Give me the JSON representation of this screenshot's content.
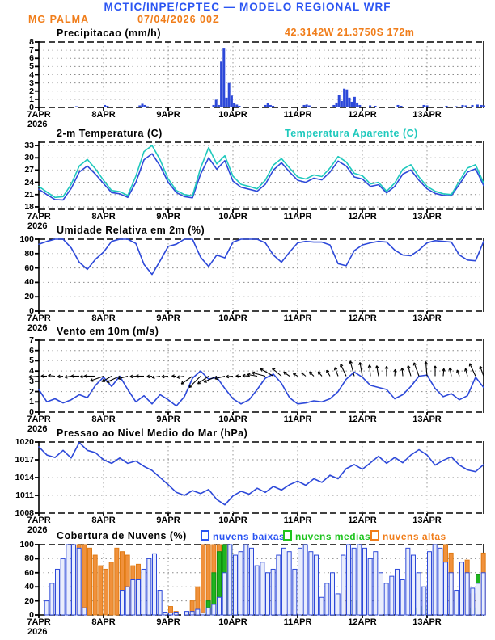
{
  "header": {
    "title": "MCTIC/INPE/CPTEC — MODELO REGIONAL WRF",
    "title_color": "#2b55f2",
    "station": "MG PALMA",
    "run_datetime": "07/04/2026 00Z",
    "coords": "42.3142W 21.3750S 172m",
    "orange_color": "#f07d1a"
  },
  "chart_data": {
    "type": "meteogram",
    "xaxis": {
      "tick_labels": [
        "7APR",
        "8APR",
        "9APR",
        "10APR",
        "11APR",
        "12APR",
        "13APR"
      ],
      "year_label": "2026",
      "days_shown": 6.875,
      "grid": "dotted"
    },
    "panels": [
      {
        "id": "precip",
        "type": "bars",
        "title": "Precipitacao (mm/h)",
        "ylabel": "mm/h",
        "ylim": [
          0,
          8
        ],
        "yticks": [
          0,
          1,
          2,
          3,
          4,
          5,
          6,
          7,
          8
        ],
        "bar_color": "#2d49d9",
        "bars": [
          [
            0.58,
            0.15
          ],
          [
            1.02,
            0.3
          ],
          [
            1.06,
            0.2
          ],
          [
            1.56,
            0.25
          ],
          [
            1.6,
            0.45
          ],
          [
            1.64,
            0.3
          ],
          [
            1.68,
            0.15
          ],
          [
            2.5,
            0.1
          ],
          [
            2.7,
            0.3
          ],
          [
            2.74,
            0.95
          ],
          [
            2.78,
            0.3
          ],
          [
            2.82,
            5.6
          ],
          [
            2.86,
            7.2
          ],
          [
            2.9,
            1.2
          ],
          [
            2.94,
            3.0
          ],
          [
            2.98,
            1.45
          ],
          [
            3.02,
            0.55
          ],
          [
            3.06,
            0.35
          ],
          [
            3.1,
            0.2
          ],
          [
            3.5,
            0.3
          ],
          [
            3.54,
            0.5
          ],
          [
            3.58,
            0.3
          ],
          [
            3.62,
            0.2
          ],
          [
            4.1,
            0.3
          ],
          [
            4.14,
            0.35
          ],
          [
            4.18,
            0.25
          ],
          [
            4.56,
            0.3
          ],
          [
            4.6,
            0.6
          ],
          [
            4.64,
            1.5
          ],
          [
            4.68,
            0.8
          ],
          [
            4.72,
            2.3
          ],
          [
            4.76,
            2.2
          ],
          [
            4.8,
            1.2
          ],
          [
            4.84,
            0.7
          ],
          [
            4.88,
            1.3
          ],
          [
            4.92,
            0.6
          ],
          [
            4.96,
            0.3
          ],
          [
            5.12,
            0.25
          ],
          [
            5.2,
            0.2
          ],
          [
            5.55,
            0.3
          ],
          [
            5.6,
            0.2
          ],
          [
            5.95,
            0.3
          ],
          [
            6.0,
            0.25
          ],
          [
            6.3,
            0.2
          ],
          [
            6.45,
            0.15
          ],
          [
            6.55,
            0.3
          ],
          [
            6.6,
            0.25
          ],
          [
            6.7,
            0.3
          ],
          [
            6.78,
            0.35
          ],
          [
            6.84,
            0.3
          ],
          [
            6.88,
            0.25
          ]
        ]
      },
      {
        "id": "temp",
        "type": "lines",
        "title": "2-m Temperatura (C)",
        "right_title": "Temperatura Aparente (C)",
        "right_title_color": "#1fc9bd",
        "ylim": [
          17.4,
          33.8
        ],
        "yticks": [
          18,
          21,
          24,
          27,
          30,
          33
        ],
        "step_hours": 3,
        "series": [
          {
            "name": "2-m Temperatura (C)",
            "color": "#2d49d9",
            "values": [
              22.3,
              21.0,
              19.8,
              19.7,
              22.5,
              26.5,
              28.0,
              26.0,
              23.7,
              21.5,
              21.2,
              20.3,
              24.0,
              29.5,
              31.0,
              28.0,
              24.0,
              21.5,
              20.5,
              20.2,
              26.0,
              30.0,
              27.2,
              29.3,
              24.3,
              22.8,
              22.3,
              21.8,
              23.5,
              27.0,
              28.8,
              26.5,
              24.5,
              24.0,
              25.0,
              24.6,
              26.5,
              29.2,
              28.0,
              25.3,
              24.8,
              23.0,
              23.4,
              21.4,
              23.0,
              26.0,
              27.0,
              24.5,
              22.4,
              21.3,
              20.8,
              20.7,
              23.5,
              26.5,
              27.3,
              23.2
            ]
          },
          {
            "name": "Temperatura Aparente (C)",
            "color": "#1fc9bd",
            "values": [
              23.0,
              21.6,
              20.3,
              20.5,
              23.5,
              28.0,
              29.6,
              27.3,
              24.5,
              22.0,
              21.7,
              20.8,
              25.5,
              31.5,
              33.0,
              29.5,
              24.8,
              22.0,
              21.0,
              20.7,
              27.5,
              32.5,
              28.5,
              30.5,
              25.5,
              23.5,
              23.0,
              22.4,
              24.5,
              28.2,
              29.8,
              27.5,
              25.3,
              24.8,
              25.8,
              25.4,
              27.5,
              30.3,
              29.0,
              26.2,
              25.6,
              23.6,
              24.0,
              21.8,
              23.8,
              27.2,
              28.3,
              25.3,
              23.0,
              21.8,
              21.2,
              21.0,
              24.3,
              27.5,
              28.3,
              23.8
            ]
          }
        ]
      },
      {
        "id": "rh",
        "type": "lines",
        "title": "Umidade Relativa em 2m (%)",
        "ylim": [
          0,
          100
        ],
        "yticks": [
          0,
          20,
          40,
          60,
          80,
          100
        ],
        "step_hours": 3,
        "series": [
          {
            "name": "Umidade Relativa em 2m (%)",
            "color": "#2d49d9",
            "values": [
              93,
              97,
              100,
              100,
              88,
              68,
              58,
              72,
              82,
              97,
              100,
              100,
              94,
              65,
              51,
              70,
              90,
              93,
              100,
              100,
              75,
              62,
              78,
              74,
              96,
              100,
              100,
              100,
              95,
              78,
              68,
              82,
              95,
              97,
              96,
              96,
              92,
              66,
              63,
              84,
              92,
              95,
              97,
              96,
              85,
              78,
              77,
              85,
              95,
              98,
              97,
              96,
              78,
              71,
              70,
              97
            ]
          }
        ]
      },
      {
        "id": "wind",
        "type": "wind",
        "title": "Vento em 10m (m/s)",
        "ylim": [
          0,
          7
        ],
        "yticks": [
          0,
          1,
          2,
          3,
          4,
          5,
          6,
          7
        ],
        "step_hours": 3,
        "speed_color": "#2d49d9",
        "arrow_color": "#000000",
        "arrow_base": 3.5,
        "speed": [
          2.2,
          1.0,
          1.3,
          0.9,
          1.2,
          1.7,
          1.4,
          2.6,
          3.4,
          2.5,
          3.5,
          2.2,
          1.0,
          1.6,
          0.8,
          1.7,
          1.2,
          0.6,
          1.5,
          3.3,
          4.0,
          3.2,
          3.4,
          2.3,
          1.3,
          0.8,
          1.2,
          2.2,
          3.3,
          3.7,
          2.8,
          1.4,
          0.8,
          0.9,
          1.1,
          1.0,
          1.3,
          2.0,
          3.2,
          3.9,
          3.4,
          2.6,
          2.4,
          2.2,
          1.3,
          1.7,
          2.5,
          3.5,
          3.6,
          2.3,
          1.5,
          1.8,
          1.2,
          1.6,
          3.4,
          2.4
        ],
        "dir_deg": [
          185,
          180,
          175,
          185,
          190,
          180,
          185,
          180,
          200,
          210,
          205,
          195,
          185,
          180,
          185,
          190,
          185,
          180,
          190,
          215,
          225,
          215,
          205,
          195,
          185,
          180,
          175,
          170,
          165,
          150,
          140,
          145,
          150,
          140,
          135,
          130,
          120,
          110,
          115,
          105,
          100,
          95,
          100,
          90,
          85,
          95,
          105,
          110,
          95,
          90,
          85,
          100,
          110,
          105,
          115,
          110
        ]
      },
      {
        "id": "pres",
        "type": "lines",
        "title": "Pressao ao Nivel Medio do Mar (hPa)",
        "ylim": [
          1008,
          1020
        ],
        "yticks": [
          1008,
          1011,
          1014,
          1017,
          1020
        ],
        "step_hours": 3,
        "series": [
          {
            "name": "Pressao ao Nivel Medio do Mar (hPa)",
            "color": "#2d49d9",
            "values": [
              1019.2,
              1017.8,
              1017.4,
              1018.6,
              1017.3,
              1019.9,
              1018.6,
              1018.2,
              1017.0,
              1016.4,
              1017.3,
              1016.4,
              1016.8,
              1015.9,
              1015.2,
              1014.0,
              1012.8,
              1011.5,
              1011.0,
              1011.8,
              1011.3,
              1012.0,
              1010.3,
              1009.4,
              1010.9,
              1011.7,
              1011.2,
              1012.2,
              1011.5,
              1012.5,
              1011.9,
              1012.8,
              1013.4,
              1012.7,
              1013.8,
              1013.2,
              1014.4,
              1013.8,
              1015.5,
              1016.2,
              1015.4,
              1016.5,
              1017.6,
              1016.4,
              1017.4,
              1016.5,
              1017.8,
              1018.7,
              1017.8,
              1016.1,
              1016.9,
              1017.5,
              1016.1,
              1015.3,
              1015.0,
              1016.2
            ]
          }
        ]
      },
      {
        "id": "clouds",
        "type": "cloudbars",
        "title": "Cobertura de Nuvens (%)",
        "ylim": [
          0,
          100
        ],
        "yticks": [
          0,
          20,
          40,
          60,
          80,
          100
        ],
        "step_hours": 2,
        "series": [
          {
            "name": "nuvens altas",
            "color": "#e07b14",
            "fill": "#f0913c",
            "text_color": "#f07d1a",
            "values": [
              0,
              0,
              0,
              0,
              0,
              0,
              0,
              100,
              100,
              95,
              85,
              70,
              65,
              75,
              95,
              90,
              85,
              70,
              72,
              0,
              0,
              0,
              0,
              0,
              12,
              5,
              0,
              0,
              20,
              40,
              100,
              100,
              100,
              100,
              100,
              100,
              0,
              0,
              0,
              0,
              0,
              0,
              0,
              0,
              0,
              0,
              0,
              0,
              0,
              0,
              0,
              0,
              0,
              0,
              0,
              0,
              35,
              0,
              0,
              0,
              0,
              0,
              0,
              0,
              0,
              0,
              0,
              0,
              0,
              0,
              0,
              0,
              0,
              0,
              0,
              100,
              88,
              0,
              50,
              78,
              30,
              0,
              88,
              100
            ]
          },
          {
            "name": "nuvens medias",
            "color": "#0f8f0f",
            "fill": "#1eb41e",
            "text_color": "#1ec41e",
            "values": [
              0,
              0,
              0,
              0,
              0,
              0,
              0,
              0,
              0,
              0,
              0,
              0,
              0,
              0,
              0,
              0,
              0,
              0,
              0,
              0,
              0,
              0,
              0,
              0,
              0,
              0,
              0,
              0,
              0,
              0,
              0,
              20,
              60,
              90,
              100,
              100,
              30,
              5,
              0,
              0,
              0,
              0,
              0,
              0,
              0,
              0,
              0,
              0,
              0,
              0,
              0,
              0,
              0,
              0,
              0,
              0,
              0,
              0,
              20,
              65,
              0,
              0,
              0,
              0,
              0,
              0,
              0,
              0,
              0,
              0,
              10,
              12,
              15,
              0,
              0,
              0,
              0,
              0,
              0,
              0,
              10,
              58,
              0,
              0
            ]
          },
          {
            "name": "nuvens baixas",
            "color": "#2d49d9",
            "fill": "#e9edfc",
            "text_color": "#2b55f2",
            "values": [
              0,
              20,
              45,
              65,
              80,
              100,
              100,
              95,
              10,
              0,
              0,
              0,
              0,
              0,
              0,
              35,
              40,
              50,
              50,
              65,
              80,
              87,
              35,
              4,
              3,
              4,
              0,
              5,
              5,
              8,
              3,
              10,
              15,
              25,
              60,
              100,
              85,
              90,
              100,
              95,
              70,
              75,
              60,
              65,
              85,
              95,
              90,
              65,
              95,
              100,
              90,
              85,
              25,
              45,
              60,
              30,
              85,
              100,
              95,
              100,
              95,
              80,
              90,
              60,
              45,
              55,
              65,
              50,
              95,
              85,
              60,
              40,
              90,
              100,
              95,
              75,
              60,
              35,
              75,
              60,
              38,
              45,
              60,
              35
            ]
          }
        ],
        "legend_order": [
          2,
          1,
          0
        ]
      }
    ]
  }
}
